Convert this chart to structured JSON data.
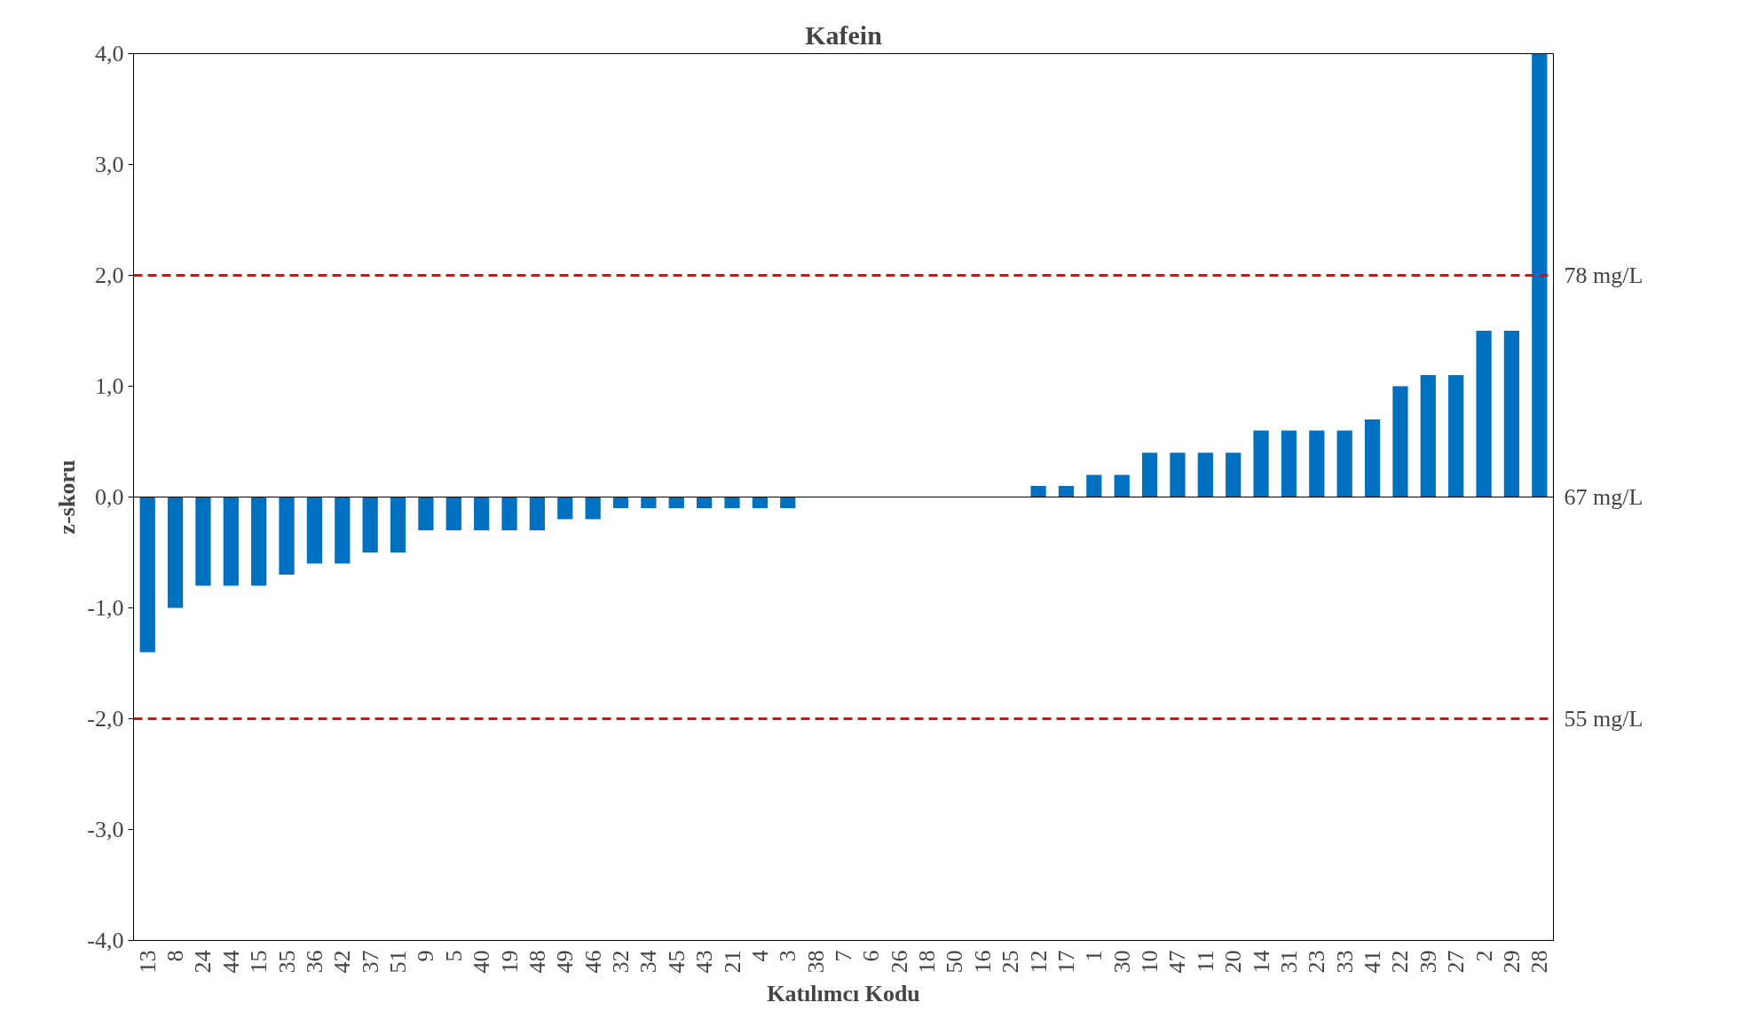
{
  "chart_data": {
    "type": "bar",
    "title": "Kafein",
    "xlabel": "Katılımcı Kodu",
    "ylabel": "z-skoru",
    "categories": [
      "13",
      "8",
      "24",
      "44",
      "15",
      "35",
      "36",
      "42",
      "37",
      "51",
      "9",
      "5",
      "40",
      "19",
      "48",
      "49",
      "46",
      "32",
      "34",
      "45",
      "43",
      "21",
      "4",
      "3",
      "38",
      "7",
      "6",
      "26",
      "18",
      "50",
      "16",
      "25",
      "12",
      "17",
      "1",
      "30",
      "10",
      "47",
      "11",
      "20",
      "14",
      "31",
      "23",
      "33",
      "41",
      "22",
      "39",
      "27",
      "2",
      "29",
      "28"
    ],
    "values": [
      -1.4,
      -1.0,
      -0.8,
      -0.8,
      -0.8,
      -0.7,
      -0.6,
      -0.6,
      -0.5,
      -0.5,
      -0.3,
      -0.3,
      -0.3,
      -0.3,
      -0.3,
      -0.2,
      -0.2,
      -0.1,
      -0.1,
      -0.1,
      -0.1,
      -0.1,
      -0.1,
      -0.1,
      0,
      0,
      0,
      0,
      0,
      0,
      0,
      0,
      0.1,
      0.1,
      0.2,
      0.2,
      0.4,
      0.4,
      0.4,
      0.4,
      0.6,
      0.6,
      0.6,
      0.6,
      0.7,
      1.0,
      1.1,
      1.1,
      1.5,
      1.5,
      4.0
    ],
    "color": "#0070c0",
    "ylim": [
      -4,
      4
    ],
    "yticks": [
      {
        "value": -4,
        "label": "-4,0"
      },
      {
        "value": -3,
        "label": "-3,0"
      },
      {
        "value": -2,
        "label": "-2,0"
      },
      {
        "value": -1,
        "label": "-1,0"
      },
      {
        "value": 0,
        "label": "0,0"
      },
      {
        "value": 1,
        "label": "1,0"
      },
      {
        "value": 2,
        "label": "2,0"
      },
      {
        "value": 3,
        "label": "3,0"
      },
      {
        "value": 4,
        "label": "4,0"
      }
    ],
    "grid": false,
    "ref_lines": [
      {
        "axis": "y",
        "value": 2,
        "label": "78 mg/L",
        "color": "#ff0000",
        "line_style": "dashed"
      },
      {
        "axis": "y",
        "value": -2,
        "label": "55 mg/L",
        "color": "#ff0000",
        "line_style": "dashed"
      },
      {
        "axis": "y",
        "value": 0,
        "label": "67 mg/L",
        "color": "#000000",
        "line_style": "solid"
      }
    ]
  }
}
